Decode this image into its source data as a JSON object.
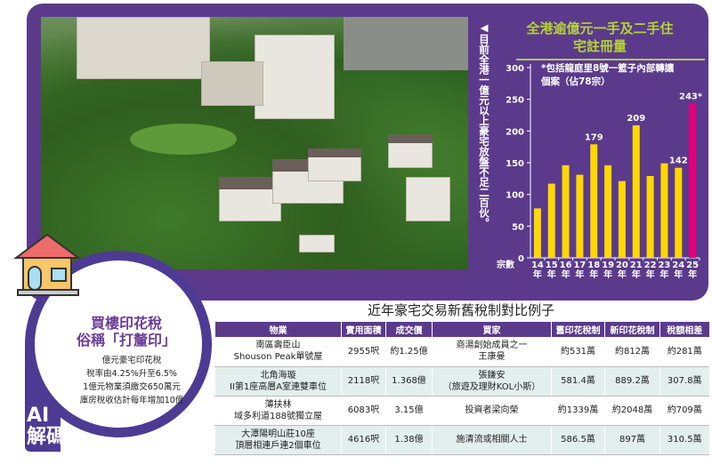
{
  "caption": "◀目前全港一億元以上豪宅放盤不足二百伙。",
  "chart_data": {
    "type": "bar",
    "title": "全港逾億元一手及二手住宅註冊量",
    "note": "*包括龍庭里8號一籃子內部轉讓個案（佔78宗）",
    "ylabel": "宗數",
    "ylim": [
      0,
      300
    ],
    "yticks": [
      0,
      50,
      100,
      150,
      200,
      250,
      300
    ],
    "categories": [
      "14年",
      "15年",
      "16年",
      "17年",
      "18年",
      "19年",
      "20年",
      "21年",
      "22年",
      "23年",
      "24年",
      "25年"
    ],
    "values": [
      78,
      117,
      146,
      131,
      179,
      146,
      121,
      209,
      129,
      149,
      142,
      243
    ],
    "data_labels": {
      "4": "179",
      "7": "209",
      "10": "142",
      "11": "243*"
    },
    "colors": {
      "bar": "#ffd800",
      "highlight": "#e2007a"
    }
  },
  "badge": {
    "tag_line1": "AI",
    "tag_line2": "解碼",
    "title_line1": "買樓印花稅",
    "title_line2": "俗稱「打釐印」",
    "lines": [
      "億元豪宅印花稅",
      "稅率由4.25%升至6.5%",
      "1億元物業須繳交650萬元",
      "庫房稅收估計每年增加10億"
    ]
  },
  "table": {
    "title": "近年豪宅交易新舊稅制對比例子",
    "headers": [
      "物業",
      "實用面積",
      "成交價",
      "買家",
      "舊印花稅制",
      "新印花稅制",
      "稅額相差"
    ],
    "rows": [
      [
        "南區壽臣山\nShouson Peak單號屋",
        "2955呎",
        "約1.25億",
        "商湯創始成員之一\n王康曼",
        "約531萬",
        "約812萬",
        "約281萬"
      ],
      [
        "北角海璇\nII第1座高層A室連雙車位",
        "2118呎",
        "1.368億",
        "張鎌安\n（旅遊及理財KOL小斯）",
        "581.4萬",
        "889.2萬",
        "307.8萬"
      ],
      [
        "薄扶林\n域多利道188號獨立屋",
        "6083呎",
        "3.15億",
        "投資者梁向榮",
        "約1339萬",
        "約2048萬",
        "約709萬"
      ],
      [
        "大潭陽明山莊10座\n頂層相連戶連2個車位",
        "4616呎",
        "1.38億",
        "施清流或相關人士",
        "586.5萬",
        "897萬",
        "310.5萬"
      ]
    ]
  }
}
